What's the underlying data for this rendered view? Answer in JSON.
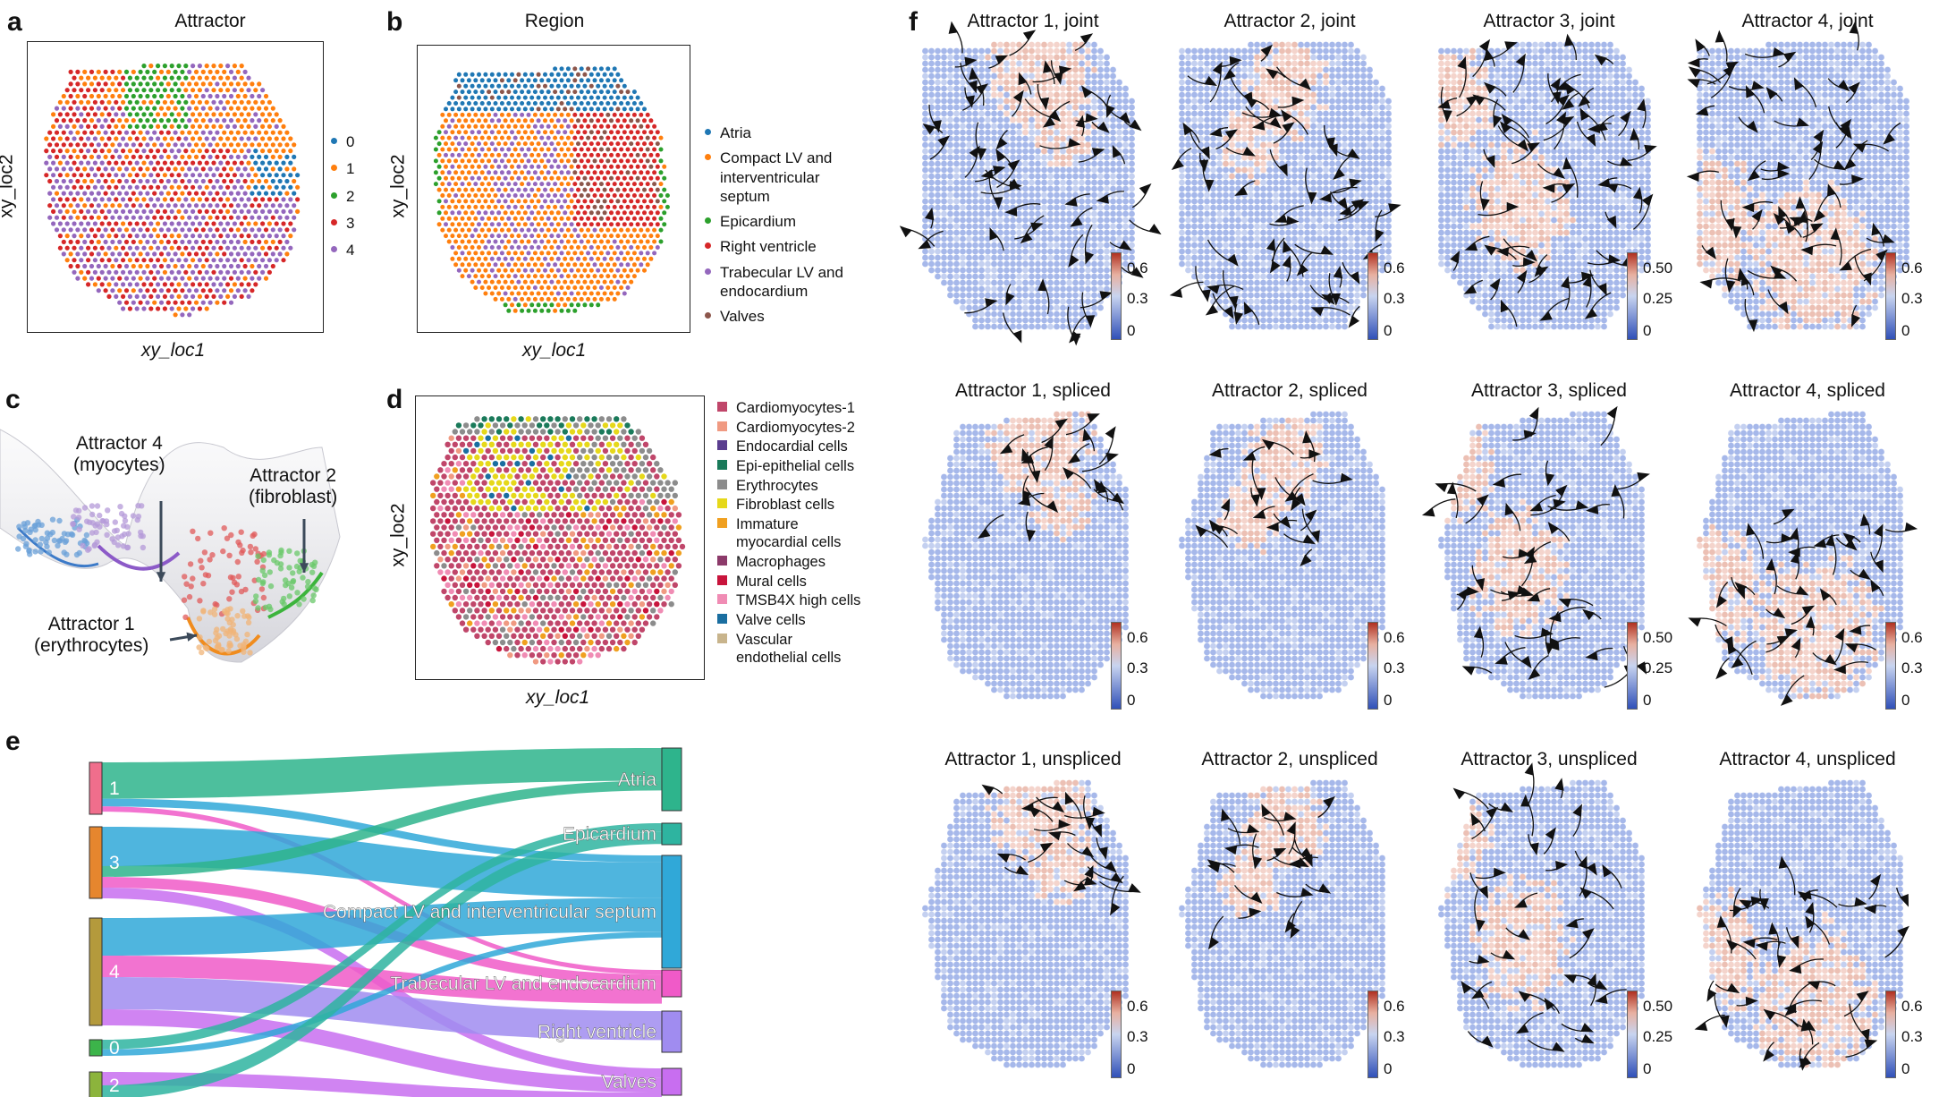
{
  "panels": {
    "a": {
      "letter": "a",
      "title": "Attractor",
      "xlabel": "xy_loc1",
      "ylabel": "xy_loc2",
      "legend": [
        {
          "label": "0",
          "color": "#1f77b4"
        },
        {
          "label": "1",
          "color": "#ff7f0e"
        },
        {
          "label": "2",
          "color": "#2ca02c"
        },
        {
          "label": "3",
          "color": "#d62728"
        },
        {
          "label": "4",
          "color": "#9467bd"
        }
      ]
    },
    "b": {
      "letter": "b",
      "title": "Region",
      "xlabel": "xy_loc1",
      "ylabel": "xy_loc2",
      "legend": [
        {
          "label": "Atria",
          "color": "#1f77b4"
        },
        {
          "label": "Compact LV and\ninterventricular\nseptum",
          "color": "#ff7f0e"
        },
        {
          "label": "Epicardium",
          "color": "#2ca02c"
        },
        {
          "label": "Right ventricle",
          "color": "#d62728"
        },
        {
          "label": "Trabecular LV and\nendocardium",
          "color": "#9467bd"
        },
        {
          "label": "Valves",
          "color": "#8c564b"
        }
      ]
    },
    "c": {
      "letter": "c",
      "labels": [
        {
          "text": "Attractor 4\n(myocytes)"
        },
        {
          "text": "Attractor 2\n(fibroblast)"
        },
        {
          "text": "Attractor 1\n(erythrocytes)"
        }
      ]
    },
    "d": {
      "letter": "d",
      "xlabel": "xy_loc1",
      "ylabel": "xy_loc2",
      "legend": [
        {
          "label": "Cardiomyocytes-1",
          "color": "#c0466a"
        },
        {
          "label": "Cardiomyocytes-2",
          "color": "#f09a82"
        },
        {
          "label": "Endocardial cells",
          "color": "#5a3d8f"
        },
        {
          "label": "Epi-epithelial cells",
          "color": "#1a7a5a"
        },
        {
          "label": "Erythrocytes",
          "color": "#8c8c8c"
        },
        {
          "label": "Fibroblast cells",
          "color": "#e6d81a"
        },
        {
          "label": "Immature\nmyocardial cells",
          "color": "#f0a020"
        },
        {
          "label": "Macrophages",
          "color": "#8c3a6a"
        },
        {
          "label": "Mural cells",
          "color": "#c8143c"
        },
        {
          "label": "TMSB4X high cells",
          "color": "#f08cb4"
        },
        {
          "label": "Valve cells",
          "color": "#1a6ea0"
        },
        {
          "label": "Vascular\nendothelial cells",
          "color": "#c8b48c"
        }
      ]
    },
    "e": {
      "letter": "e",
      "left": [
        {
          "label": "1",
          "color": "#f06e8c"
        },
        {
          "label": "3",
          "color": "#e6862e"
        },
        {
          "label": "4",
          "color": "#b49a3c"
        },
        {
          "label": "0",
          "color": "#3cb44a"
        },
        {
          "label": "2",
          "color": "#8cb43c"
        }
      ],
      "right": [
        {
          "label": "Atria",
          "color": "#2eb48c"
        },
        {
          "label": "Epicardium",
          "color": "#2eb4a0"
        },
        {
          "label": "Compact LV and interventricular septum",
          "color": "#30a8d8"
        },
        {
          "label": "Trabecular LV and endocardium",
          "color": "#f05ac8"
        },
        {
          "label": "Right ventricle",
          "color": "#a08cf0"
        },
        {
          "label": "Valves",
          "color": "#c86ef0"
        }
      ]
    },
    "f": {
      "letter": "f",
      "titles": [
        [
          "Attractor 1, joint",
          "Attractor 2, joint",
          "Attractor 3, joint",
          "Attractor 4, joint"
        ],
        [
          "Attractor 1, spliced",
          "Attractor 2, spliced",
          "Attractor 3, spliced",
          "Attractor 4, spliced"
        ],
        [
          "Attractor 1, unspliced",
          "Attractor 2, unspliced",
          "Attractor 3, unspliced",
          "Attractor 4, unspliced"
        ]
      ],
      "colorbars": [
        [
          "0.6",
          "0.3",
          "0"
        ],
        [
          "0.50",
          "0.25",
          "0"
        ]
      ]
    }
  }
}
